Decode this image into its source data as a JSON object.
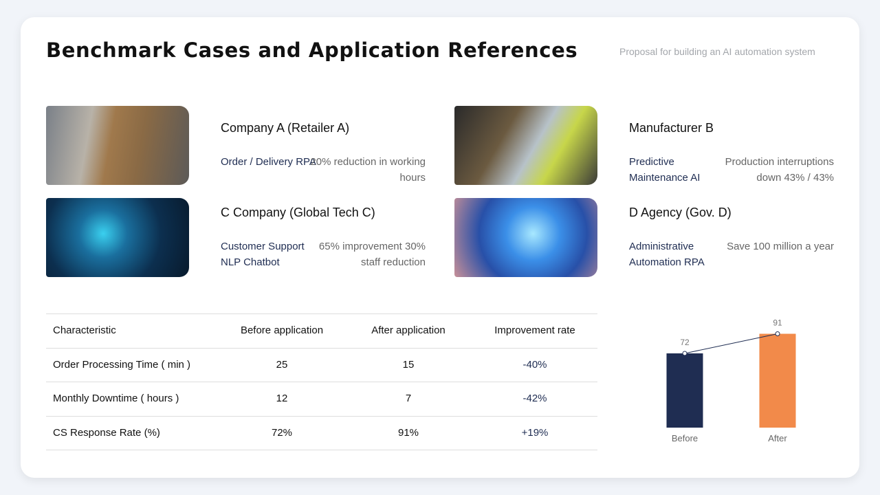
{
  "header": {
    "title": "Benchmark Cases and Application References",
    "subtitle": "Proposal for building an AI automation system"
  },
  "cases": [
    {
      "name": "Company A (Retailer A)",
      "application": "Order / Delivery RPA",
      "result": "20% reduction in working hours"
    },
    {
      "name": "Manufacturer B",
      "application": "Predictive Maintenance AI",
      "result": "Production interruptions down 43% / 43%"
    },
    {
      "name": "C Company (Global Tech C)",
      "application": "Customer Support NLP Chatbot",
      "result": "65% improvement 30% staff reduction"
    },
    {
      "name": "D Agency (Gov. D)",
      "application": "Administrative Automation RPA",
      "result": "Save 100 million a year"
    }
  ],
  "table": {
    "headers": [
      "Characteristic",
      "Before application",
      "After application",
      "Improvement rate"
    ],
    "rows": [
      [
        "Order Processing Time ( min )",
        "25",
        "15",
        "-40%"
      ],
      [
        "Monthly Downtime ( hours )",
        "12",
        "7",
        "-42%"
      ],
      [
        "CS Response Rate (%)",
        "72%",
        "91%",
        "+19%"
      ]
    ]
  },
  "chart_data": {
    "type": "bar",
    "categories": [
      "Before",
      "After"
    ],
    "values": [
      72,
      91
    ],
    "colors": [
      "#1f2d52",
      "#f28a4a"
    ],
    "line": true
  }
}
